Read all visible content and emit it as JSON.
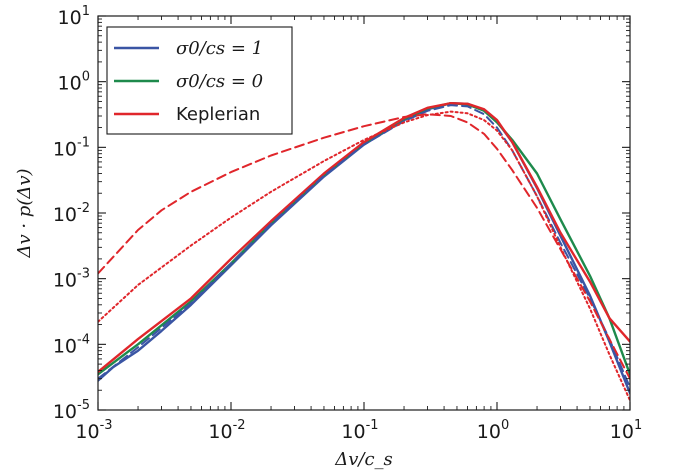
{
  "chart_data": {
    "type": "line",
    "xlabel": "Δv/c_s",
    "ylabel": "Δv · p(Δv)",
    "xscale": "log",
    "yscale": "log",
    "xlim": [
      0.001,
      10
    ],
    "ylim": [
      1e-05,
      10
    ],
    "grid": false,
    "legend_position": "top-left",
    "x_ticks": [
      {
        "base": "10",
        "exp": "-3",
        "value": 0.001
      },
      {
        "base": "10",
        "exp": "-2",
        "value": 0.01
      },
      {
        "base": "10",
        "exp": "-1",
        "value": 0.1
      },
      {
        "base": "10",
        "exp": "0",
        "value": 1
      },
      {
        "base": "10",
        "exp": "1",
        "value": 10
      }
    ],
    "y_ticks": [
      {
        "base": "10",
        "exp": "-5",
        "value": 1e-05
      },
      {
        "base": "10",
        "exp": "-4",
        "value": 0.0001
      },
      {
        "base": "10",
        "exp": "-3",
        "value": 0.001
      },
      {
        "base": "10",
        "exp": "-2",
        "value": 0.01
      },
      {
        "base": "10",
        "exp": "-1",
        "value": 0.1
      },
      {
        "base": "10",
        "exp": "0",
        "value": 1
      },
      {
        "base": "10",
        "exp": "1",
        "value": 10
      }
    ],
    "legend": [
      {
        "label": "σ0/cs = 1",
        "color": "#3a55a4"
      },
      {
        "label": "σ0/cs = 0",
        "color": "#1e8a4c"
      },
      {
        "label": "Keplerian",
        "color": "#e0262b"
      }
    ],
    "series": [
      {
        "name": "σ0/cs = 1",
        "color": "#3a55a4",
        "style": "solid",
        "x": [
          0.001,
          0.0013,
          0.002,
          0.003,
          0.005,
          0.01,
          0.02,
          0.05,
          0.1,
          0.2,
          0.3,
          0.45,
          0.6,
          0.8,
          1.0,
          1.3,
          2.0,
          3.0,
          5.0,
          7.0,
          10.0
        ],
        "y": [
          2.8e-05,
          4.5e-05,
          8e-05,
          0.00016,
          0.0004,
          0.0016,
          0.0065,
          0.036,
          0.11,
          0.26,
          0.38,
          0.47,
          0.46,
          0.37,
          0.25,
          0.12,
          0.024,
          0.0045,
          0.00055,
          0.00011,
          1.8e-05
        ]
      },
      {
        "name": "σ0/cs = 0",
        "color": "#1e8a4c",
        "style": "solid",
        "x": [
          0.001,
          0.002,
          0.005,
          0.01,
          0.02,
          0.05,
          0.1,
          0.2,
          0.3,
          0.45,
          0.6,
          0.8,
          1.0,
          1.3,
          2.0,
          3.0,
          5.0,
          7.0,
          10.0
        ],
        "y": [
          3.5e-05,
          0.0001,
          0.00045,
          0.0017,
          0.007,
          0.038,
          0.115,
          0.27,
          0.39,
          0.47,
          0.45,
          0.36,
          0.24,
          0.13,
          0.04,
          0.008,
          0.0011,
          0.00025,
          3.5e-05
        ]
      },
      {
        "name": "Keplerian",
        "color": "#e0262b",
        "style": "solid",
        "x": [
          0.001,
          0.002,
          0.005,
          0.01,
          0.02,
          0.05,
          0.1,
          0.2,
          0.3,
          0.45,
          0.6,
          0.8,
          1.0,
          1.3,
          2.0,
          3.0,
          5.0,
          7.0,
          10.0
        ],
        "y": [
          3.8e-05,
          0.00012,
          0.0005,
          0.002,
          0.0075,
          0.04,
          0.12,
          0.28,
          0.4,
          0.47,
          0.46,
          0.38,
          0.26,
          0.12,
          0.025,
          0.005,
          0.0009,
          0.00025,
          0.00011
        ]
      },
      {
        "name": "",
        "color": "#3a55a4",
        "style": "dashed",
        "x": [
          0.001,
          0.002,
          0.005,
          0.01,
          0.02,
          0.05,
          0.1,
          0.2,
          0.3,
          0.45,
          0.6,
          0.8,
          1.0,
          1.3,
          2.0,
          3.0,
          5.0,
          7.0,
          10.0
        ],
        "y": [
          3e-05,
          9e-05,
          0.00042,
          0.0017,
          0.0068,
          0.037,
          0.11,
          0.25,
          0.36,
          0.44,
          0.42,
          0.32,
          0.2,
          0.09,
          0.018,
          0.0035,
          0.0005,
          0.00012,
          2.2e-05
        ]
      },
      {
        "name": "",
        "color": "#e0262b",
        "style": "dashed",
        "x": [
          0.001,
          0.002,
          0.003,
          0.005,
          0.01,
          0.02,
          0.05,
          0.1,
          0.2,
          0.3,
          0.45,
          0.6,
          0.8,
          1.0,
          1.3,
          2.0,
          3.0,
          5.0,
          7.0,
          10.0
        ],
        "y": [
          0.0012,
          0.0055,
          0.011,
          0.021,
          0.042,
          0.075,
          0.14,
          0.21,
          0.29,
          0.32,
          0.3,
          0.24,
          0.16,
          0.095,
          0.045,
          0.012,
          0.0028,
          0.00045,
          0.00012,
          3e-05
        ]
      },
      {
        "name": "",
        "color": "#e0262b",
        "style": "dotted",
        "x": [
          0.001,
          0.002,
          0.005,
          0.01,
          0.02,
          0.05,
          0.1,
          0.2,
          0.3,
          0.45,
          0.6,
          0.8,
          1.0,
          1.3,
          2.0,
          3.0,
          5.0,
          7.0,
          10.0
        ],
        "y": [
          0.00022,
          0.0008,
          0.0032,
          0.0085,
          0.021,
          0.062,
          0.13,
          0.24,
          0.31,
          0.35,
          0.33,
          0.26,
          0.18,
          0.09,
          0.018,
          0.003,
          0.00035,
          7e-05,
          1.4e-05
        ]
      }
    ]
  }
}
